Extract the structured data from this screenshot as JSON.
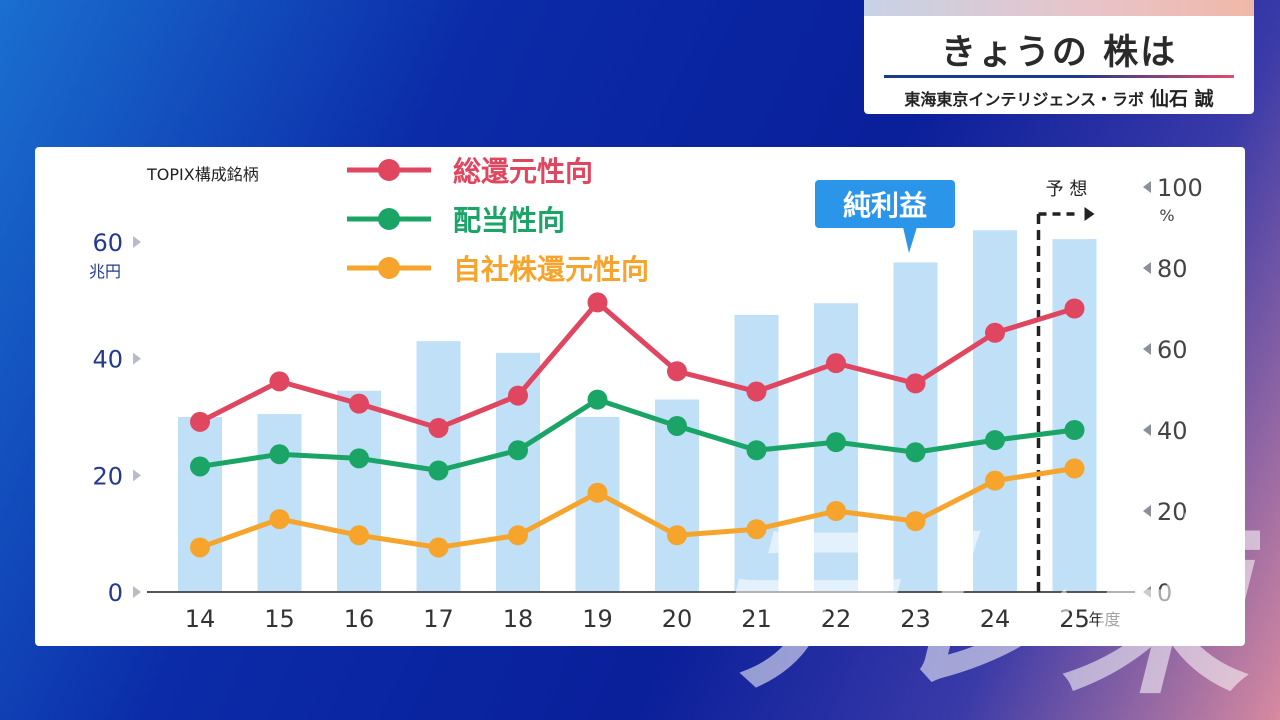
{
  "header": {
    "title": "きょうの 株は",
    "subtitle": "東海東京インテリジェンス・ラボ",
    "name": "仙石 誠"
  },
  "watermark": "テレ東",
  "chart_data": {
    "type": "bar",
    "note_topleft": "TOPIX構成銘柄",
    "categories": [
      "14",
      "15",
      "16",
      "17",
      "18",
      "19",
      "20",
      "21",
      "22",
      "23",
      "24",
      "25"
    ],
    "x_suffix": "年度",
    "left_axis": {
      "ticks": [
        "0",
        "20",
        "40",
        "60"
      ],
      "unit": "兆円",
      "range": [
        0,
        60
      ]
    },
    "right_axis": {
      "ticks": [
        "0",
        "20",
        "40",
        "60",
        "80",
        "100"
      ],
      "unit": "%",
      "range": [
        0,
        100
      ]
    },
    "bars": {
      "name": "純利益",
      "color": "#bfe0f7",
      "values": [
        30,
        30.5,
        34.5,
        43,
        41,
        30,
        33,
        47.5,
        49.5,
        56.5,
        62,
        60.5
      ]
    },
    "series": [
      {
        "name": "総還元性向",
        "color": "#e0465f",
        "values": [
          42,
          52,
          46.5,
          40.5,
          48.5,
          71.5,
          54.5,
          49.5,
          56.5,
          51.5,
          64,
          70
        ]
      },
      {
        "name": "配当性向",
        "color": "#1aa567",
        "values": [
          31,
          34,
          33,
          30,
          35,
          47.5,
          41,
          35,
          37,
          34.5,
          37.5,
          40
        ]
      },
      {
        "name": "自社株還元性向",
        "color": "#f6a42c",
        "values": [
          11,
          18,
          14,
          11,
          14,
          24.5,
          14,
          15.5,
          20,
          17.5,
          27.5,
          30.5
        ]
      }
    ],
    "forecast_label": "予 想",
    "forecast_from": "25"
  }
}
